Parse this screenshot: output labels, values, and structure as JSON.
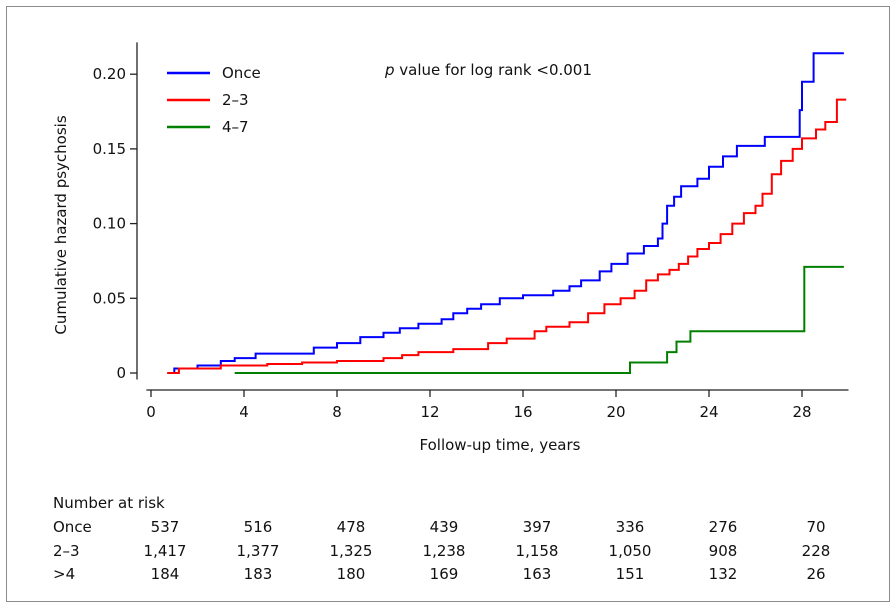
{
  "chart_data": {
    "type": "line",
    "line_style": "step",
    "title": "",
    "annotation": {
      "italic": "p",
      "text": " value for log rank <0.001"
    },
    "xlabel": "Follow-up time, years",
    "ylabel": "Cumulative hazard psychosis",
    "xlim": [
      0,
      30
    ],
    "ylim": [
      -0.003,
      0.22
    ],
    "x_ticks": [
      0,
      4,
      8,
      12,
      16,
      20,
      24,
      28
    ],
    "x_tick_labels": [
      "0",
      "4",
      "8",
      "12",
      "16",
      "20",
      "24",
      "28"
    ],
    "y_ticks": [
      0,
      0.05,
      0.1,
      0.15,
      0.2
    ],
    "y_tick_labels": [
      "0",
      "0.05",
      "0.10",
      "0.15",
      "0.20"
    ],
    "grid": false,
    "legend_position": "top-left",
    "series": [
      {
        "name": "Once",
        "color": "#0000ff",
        "points": [
          [
            0.7,
            0
          ],
          [
            1.0,
            0.003
          ],
          [
            2.0,
            0.005
          ],
          [
            3.0,
            0.008
          ],
          [
            3.6,
            0.01
          ],
          [
            4.5,
            0.013
          ],
          [
            7.0,
            0.017
          ],
          [
            8.0,
            0.02
          ],
          [
            9.0,
            0.024
          ],
          [
            10.0,
            0.027
          ],
          [
            10.7,
            0.03
          ],
          [
            11.5,
            0.033
          ],
          [
            12.5,
            0.036
          ],
          [
            13.0,
            0.04
          ],
          [
            13.6,
            0.043
          ],
          [
            14.2,
            0.046
          ],
          [
            15.0,
            0.05
          ],
          [
            16.0,
            0.052
          ],
          [
            17.3,
            0.055
          ],
          [
            18.0,
            0.058
          ],
          [
            18.5,
            0.062
          ],
          [
            19.3,
            0.068
          ],
          [
            19.8,
            0.073
          ],
          [
            20.5,
            0.08
          ],
          [
            21.2,
            0.085
          ],
          [
            21.8,
            0.09
          ],
          [
            22.0,
            0.1
          ],
          [
            22.2,
            0.112
          ],
          [
            22.5,
            0.118
          ],
          [
            22.8,
            0.125
          ],
          [
            23.5,
            0.13
          ],
          [
            24.0,
            0.138
          ],
          [
            24.6,
            0.145
          ],
          [
            25.2,
            0.152
          ],
          [
            26.4,
            0.158
          ],
          [
            27.9,
            0.176
          ],
          [
            28.0,
            0.195
          ],
          [
            28.5,
            0.214
          ],
          [
            29.8,
            0.214
          ]
        ]
      },
      {
        "name": "2–3",
        "color": "#ff0000",
        "points": [
          [
            0.7,
            0
          ],
          [
            1.2,
            0.003
          ],
          [
            3.0,
            0.005
          ],
          [
            5.0,
            0.006
          ],
          [
            6.5,
            0.007
          ],
          [
            8.0,
            0.008
          ],
          [
            10.0,
            0.01
          ],
          [
            10.8,
            0.012
          ],
          [
            11.5,
            0.014
          ],
          [
            13.0,
            0.016
          ],
          [
            14.5,
            0.02
          ],
          [
            15.3,
            0.023
          ],
          [
            16.5,
            0.028
          ],
          [
            17.0,
            0.031
          ],
          [
            18.0,
            0.034
          ],
          [
            18.8,
            0.04
          ],
          [
            19.5,
            0.046
          ],
          [
            20.2,
            0.05
          ],
          [
            20.8,
            0.055
          ],
          [
            21.3,
            0.062
          ],
          [
            21.8,
            0.066
          ],
          [
            22.3,
            0.069
          ],
          [
            22.7,
            0.073
          ],
          [
            23.1,
            0.078
          ],
          [
            23.5,
            0.083
          ],
          [
            24.0,
            0.087
          ],
          [
            24.5,
            0.093
          ],
          [
            25.0,
            0.1
          ],
          [
            25.5,
            0.107
          ],
          [
            26.0,
            0.112
          ],
          [
            26.3,
            0.12
          ],
          [
            26.7,
            0.133
          ],
          [
            27.1,
            0.142
          ],
          [
            27.6,
            0.15
          ],
          [
            28.0,
            0.157
          ],
          [
            28.6,
            0.163
          ],
          [
            29.0,
            0.168
          ],
          [
            29.5,
            0.183
          ],
          [
            29.9,
            0.183
          ]
        ]
      },
      {
        "name": "4–7",
        "color": "#008000",
        "points": [
          [
            3.6,
            0
          ],
          [
            20.6,
            0.007
          ],
          [
            22.2,
            0.014
          ],
          [
            22.6,
            0.021
          ],
          [
            23.2,
            0.028
          ],
          [
            28.1,
            0.071
          ],
          [
            29.8,
            0.071
          ]
        ]
      }
    ],
    "risk_table": {
      "title": "Number at risk",
      "times": [
        0,
        4,
        8,
        12,
        16,
        20,
        24,
        28
      ],
      "rows": [
        {
          "label": "Once",
          "values": [
            "537",
            "516",
            "478",
            "439",
            "397",
            "336",
            "276",
            "70"
          ]
        },
        {
          "label": "2–3",
          "values": [
            "1,417",
            "1,377",
            "1,325",
            "1,238",
            "1,158",
            "1,050",
            "908",
            "228"
          ]
        },
        {
          "label": ">4",
          "values": [
            "184",
            "183",
            "180",
            "169",
            "163",
            "151",
            "132",
            "26"
          ]
        }
      ]
    }
  }
}
